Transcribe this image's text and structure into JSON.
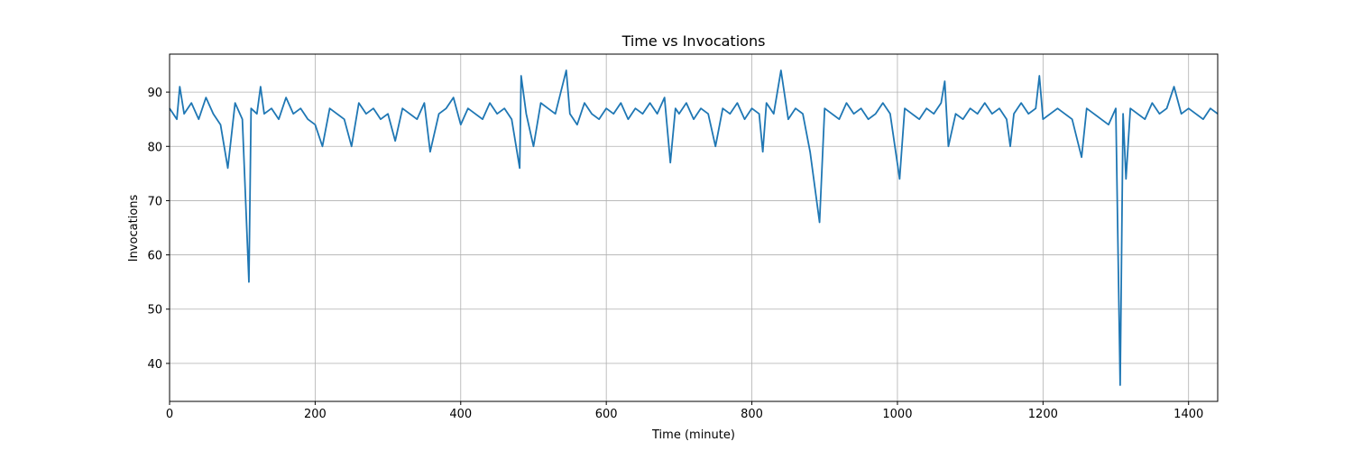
{
  "chart_data": {
    "type": "line",
    "title": "Time vs Invocations",
    "xlabel": "Time (minute)",
    "ylabel": "Invocations",
    "x": [
      0,
      10,
      14,
      20,
      30,
      40,
      50,
      60,
      70,
      80,
      90,
      100,
      109,
      112,
      120,
      125,
      130,
      140,
      150,
      160,
      170,
      180,
      190,
      200,
      210,
      220,
      230,
      240,
      250,
      260,
      270,
      280,
      290,
      300,
      310,
      320,
      330,
      340,
      350,
      358,
      370,
      380,
      390,
      400,
      410,
      420,
      430,
      440,
      450,
      460,
      470,
      481,
      483,
      490,
      500,
      510,
      520,
      530,
      545,
      550,
      560,
      570,
      580,
      590,
      600,
      610,
      620,
      630,
      640,
      650,
      660,
      670,
      680,
      688,
      695,
      700,
      710,
      720,
      730,
      740,
      750,
      760,
      770,
      780,
      790,
      800,
      810,
      815,
      820,
      830,
      840,
      850,
      860,
      870,
      880,
      893,
      900,
      910,
      920,
      930,
      940,
      950,
      960,
      970,
      980,
      990,
      1003,
      1010,
      1020,
      1030,
      1040,
      1050,
      1060,
      1065,
      1070,
      1080,
      1090,
      1100,
      1110,
      1120,
      1130,
      1140,
      1150,
      1155,
      1160,
      1170,
      1180,
      1190,
      1195,
      1200,
      1210,
      1220,
      1230,
      1240,
      1253,
      1260,
      1270,
      1280,
      1290,
      1300,
      1306,
      1310,
      1314,
      1320,
      1330,
      1340,
      1350,
      1360,
      1370,
      1380,
      1390,
      1400,
      1410,
      1420,
      1430,
      1440
    ],
    "series": [
      {
        "name": "Invocations",
        "color": "#1f77b4",
        "values": [
          87,
          85,
          91,
          86,
          88,
          85,
          89,
          86,
          84,
          76,
          88,
          85,
          55,
          87,
          86,
          91,
          86,
          87,
          85,
          89,
          86,
          87,
          85,
          84,
          80,
          87,
          86,
          85,
          80,
          88,
          86,
          87,
          85,
          86,
          81,
          87,
          86,
          85,
          88,
          79,
          86,
          87,
          89,
          84,
          87,
          86,
          85,
          88,
          86,
          87,
          85,
          76,
          93,
          86,
          80,
          88,
          87,
          86,
          94,
          86,
          84,
          88,
          86,
          85,
          87,
          86,
          88,
          85,
          87,
          86,
          88,
          86,
          89,
          77,
          87,
          86,
          88,
          85,
          87,
          86,
          80,
          87,
          86,
          88,
          85,
          87,
          86,
          79,
          88,
          86,
          94,
          85,
          87,
          86,
          79,
          66,
          87,
          86,
          85,
          88,
          86,
          87,
          85,
          86,
          88,
          86,
          74,
          87,
          86,
          85,
          87,
          86,
          88,
          92,
          80,
          86,
          85,
          87,
          86,
          88,
          86,
          87,
          85,
          80,
          86,
          88,
          86,
          87,
          93,
          85,
          86,
          87,
          86,
          85,
          78,
          87,
          86,
          85,
          84,
          87,
          36,
          86,
          74,
          87,
          86,
          85,
          88,
          86,
          87,
          91,
          86,
          87,
          86,
          85,
          87,
          86
        ]
      }
    ],
    "xlim": [
      0,
      1440
    ],
    "ylim": [
      33,
      97
    ],
    "xticks": [
      0,
      200,
      400,
      600,
      800,
      1000,
      1200,
      1400
    ],
    "yticks": [
      40,
      50,
      60,
      70,
      80,
      90
    ],
    "grid": true
  }
}
